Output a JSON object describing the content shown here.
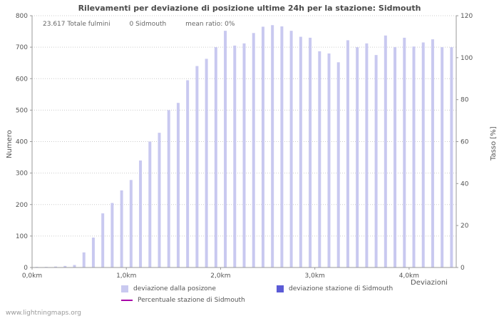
{
  "watermark": "www.lightningmaps.org",
  "chart_data": {
    "type": "bar",
    "title": "Rilevamenti per deviazione di posizione ultime 24h per la stazione: Sidmouth",
    "stats": {
      "total": "23.617 Totale fulmini",
      "station": "0 Sidmouth",
      "mean_ratio": "mean ratio: 0%"
    },
    "xlabel": "Deviazioni",
    "ylabel_left": "Numero",
    "ylabel_right": "Tasso [%]",
    "ylim_left": [
      0,
      800
    ],
    "ylim_right": [
      0,
      120
    ],
    "y_left_ticks": [
      0,
      100,
      200,
      300,
      400,
      500,
      600,
      700,
      800
    ],
    "y_right_ticks": [
      0,
      20,
      40,
      60,
      80,
      100,
      120
    ],
    "x_range_km": [
      0,
      4.5
    ],
    "x_step_km": 0.1,
    "x_ticks": [
      {
        "km": 0,
        "label": "0,0km"
      },
      {
        "km": 1,
        "label": "1,0km"
      },
      {
        "km": 2,
        "label": "2,0km"
      },
      {
        "km": 3,
        "label": "3,0km"
      },
      {
        "km": 4,
        "label": "4,0km"
      }
    ],
    "grid": true,
    "legend_position": "bottom",
    "series": [
      {
        "name": "deviazione dalla posizone",
        "type": "bar",
        "axis": "left",
        "color": "#c9c9f0",
        "values": [
          2,
          2,
          3,
          5,
          8,
          48,
          95,
          172,
          205,
          245,
          278,
          340,
          400,
          428,
          500,
          523,
          595,
          640,
          663,
          700,
          752,
          705,
          712,
          745,
          765,
          770,
          766,
          752,
          733,
          730,
          687,
          680,
          652,
          722,
          700,
          712,
          675,
          737,
          700,
          730,
          702,
          715,
          725,
          700,
          700
        ]
      },
      {
        "name": "deviazione stazione di Sidmouth",
        "type": "bar",
        "axis": "left",
        "color": "#5b5bd6",
        "values": [
          0,
          0,
          0,
          0,
          0,
          0,
          0,
          0,
          0,
          0,
          0,
          0,
          0,
          0,
          0,
          0,
          0,
          0,
          0,
          0,
          0,
          0,
          0,
          0,
          0,
          0,
          0,
          0,
          0,
          0,
          0,
          0,
          0,
          0,
          0,
          0,
          0,
          0,
          0,
          0,
          0,
          0,
          0,
          0,
          0
        ]
      },
      {
        "name": "Percentuale stazione di Sidmouth",
        "type": "line",
        "axis": "right",
        "color": "#a800a8",
        "values": []
      }
    ],
    "colors": {
      "grid": "#cccccc",
      "axis": "#999999",
      "text": "#555555"
    }
  }
}
